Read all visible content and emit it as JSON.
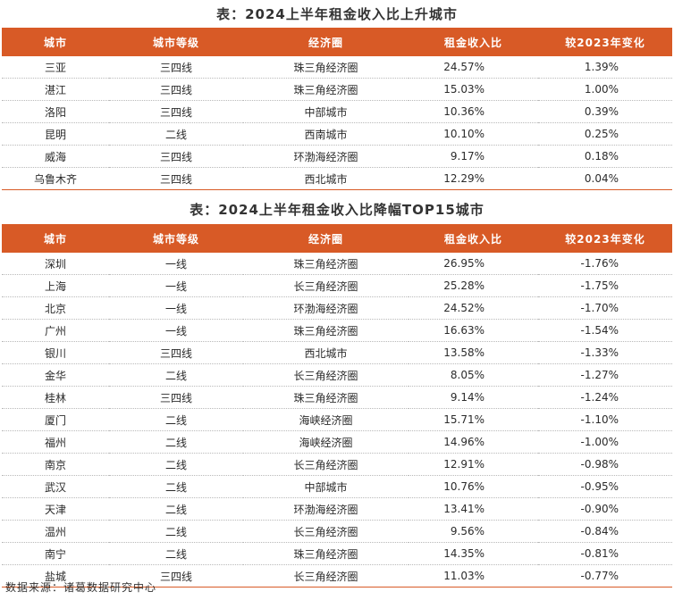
{
  "table1": {
    "title": "表：2024上半年租金收入比上升城市",
    "headers": [
      "城市",
      "城市等级",
      "经济圈",
      "租金收入比",
      "较2023年变化"
    ],
    "rows": [
      [
        "三亚",
        "三四线",
        "珠三角经济圈",
        "24.57%",
        "1.39%"
      ],
      [
        "湛江",
        "三四线",
        "珠三角经济圈",
        "15.03%",
        "1.00%"
      ],
      [
        "洛阳",
        "三四线",
        "中部城市",
        "10.36%",
        "0.39%"
      ],
      [
        "昆明",
        "二线",
        "西南城市",
        "10.10%",
        "0.25%"
      ],
      [
        "威海",
        "三四线",
        "环渤海经济圈",
        "9.17%",
        "0.18%"
      ],
      [
        "乌鲁木齐",
        "三四线",
        "西北城市",
        "12.29%",
        "0.04%"
      ]
    ]
  },
  "table2": {
    "title": "表：2024上半年租金收入比降幅TOP15城市",
    "headers": [
      "城市",
      "城市等级",
      "经济圈",
      "租金收入比",
      "较2023年变化"
    ],
    "rows": [
      [
        "深圳",
        "一线",
        "珠三角经济圈",
        "26.95%",
        "-1.76%"
      ],
      [
        "上海",
        "一线",
        "长三角经济圈",
        "25.28%",
        "-1.75%"
      ],
      [
        "北京",
        "一线",
        "环渤海经济圈",
        "24.52%",
        "-1.70%"
      ],
      [
        "广州",
        "一线",
        "珠三角经济圈",
        "16.63%",
        "-1.54%"
      ],
      [
        "银川",
        "三四线",
        "西北城市",
        "13.58%",
        "-1.33%"
      ],
      [
        "金华",
        "二线",
        "长三角经济圈",
        "8.05%",
        "-1.27%"
      ],
      [
        "桂林",
        "三四线",
        "珠三角经济圈",
        "9.14%",
        "-1.24%"
      ],
      [
        "厦门",
        "二线",
        "海峡经济圈",
        "15.71%",
        "-1.10%"
      ],
      [
        "福州",
        "二线",
        "海峡经济圈",
        "14.96%",
        "-1.00%"
      ],
      [
        "南京",
        "二线",
        "长三角经济圈",
        "12.91%",
        "-0.98%"
      ],
      [
        "武汉",
        "二线",
        "中部城市",
        "10.76%",
        "-0.95%"
      ],
      [
        "天津",
        "二线",
        "环渤海经济圈",
        "13.41%",
        "-0.90%"
      ],
      [
        "温州",
        "二线",
        "长三角经济圈",
        "9.56%",
        "-0.84%"
      ],
      [
        "南宁",
        "二线",
        "珠三角经济圈",
        "14.35%",
        "-0.81%"
      ],
      [
        "盐城",
        "三四线",
        "长三角经济圈",
        "11.03%",
        "-0.77%"
      ]
    ]
  },
  "source": "数据来源：诸葛数据研究中心",
  "colors": {
    "header_bg": "#d85a26",
    "header_text": "#ffffff"
  }
}
